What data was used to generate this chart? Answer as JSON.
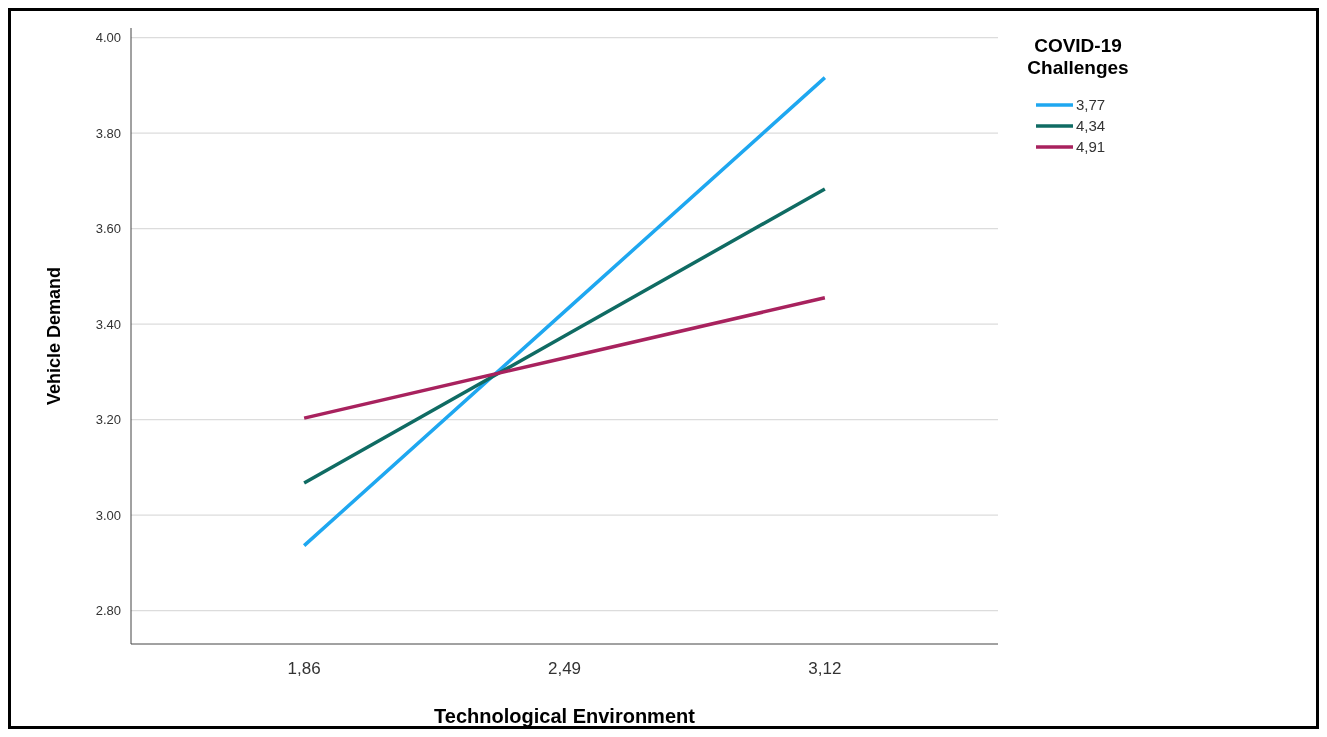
{
  "chart_data": {
    "type": "line",
    "xlabel": "Technological Environment",
    "ylabel": "Vehicle Demand",
    "legend_title": "COVID-19 Challenges",
    "categories": [
      "1,86",
      "2,49",
      "3,12"
    ],
    "series": [
      {
        "name": "3,77",
        "color": "#1ea7f0",
        "values": [
          2.936,
          3.426,
          3.916
        ]
      },
      {
        "name": "4,34",
        "color": "#0f6b63",
        "values": [
          3.067,
          3.375,
          3.683
        ]
      },
      {
        "name": "4,91",
        "color": "#a8225e",
        "values": [
          3.203,
          3.329,
          3.455
        ]
      }
    ],
    "ylim": [
      2.73,
      4.02
    ],
    "yticks": [
      {
        "value": 2.8,
        "label": "2.80"
      },
      {
        "value": 3.0,
        "label": "3.00"
      },
      {
        "value": 3.2,
        "label": "3.20"
      },
      {
        "value": 3.4,
        "label": "3.40"
      },
      {
        "value": 3.6,
        "label": "3.60"
      },
      {
        "value": 3.8,
        "label": "3.80"
      },
      {
        "value": 4.0,
        "label": "4.00"
      }
    ],
    "grid": "y",
    "legend": "top right",
    "marker": "none",
    "line_style": "solid"
  }
}
